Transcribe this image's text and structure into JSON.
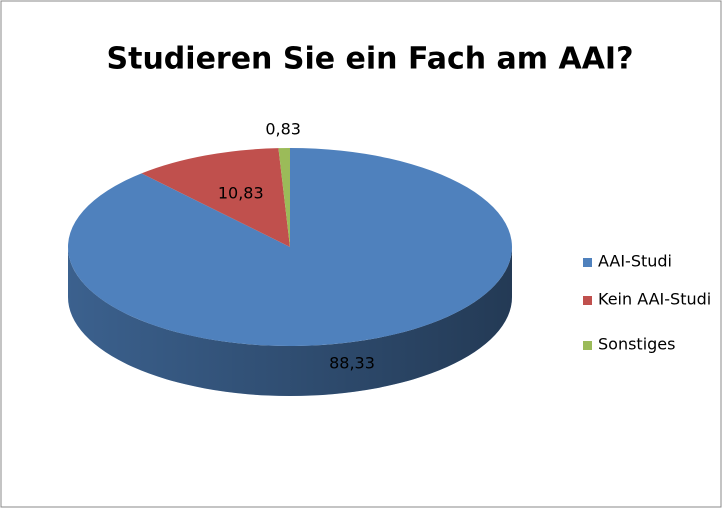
{
  "chart_data": {
    "type": "pie",
    "title": "Studieren Sie ein Fach am AAI?",
    "categories": [
      "AAI-Studi",
      "Kein AAI-Studi",
      "Sonstiges"
    ],
    "values": [
      88.33,
      10.83,
      0.83
    ],
    "value_labels": [
      "88,33",
      "10,83",
      "0,83"
    ],
    "colors": [
      "#4f81bd",
      "#c0504d",
      "#9bbb59"
    ],
    "legend": "right"
  }
}
